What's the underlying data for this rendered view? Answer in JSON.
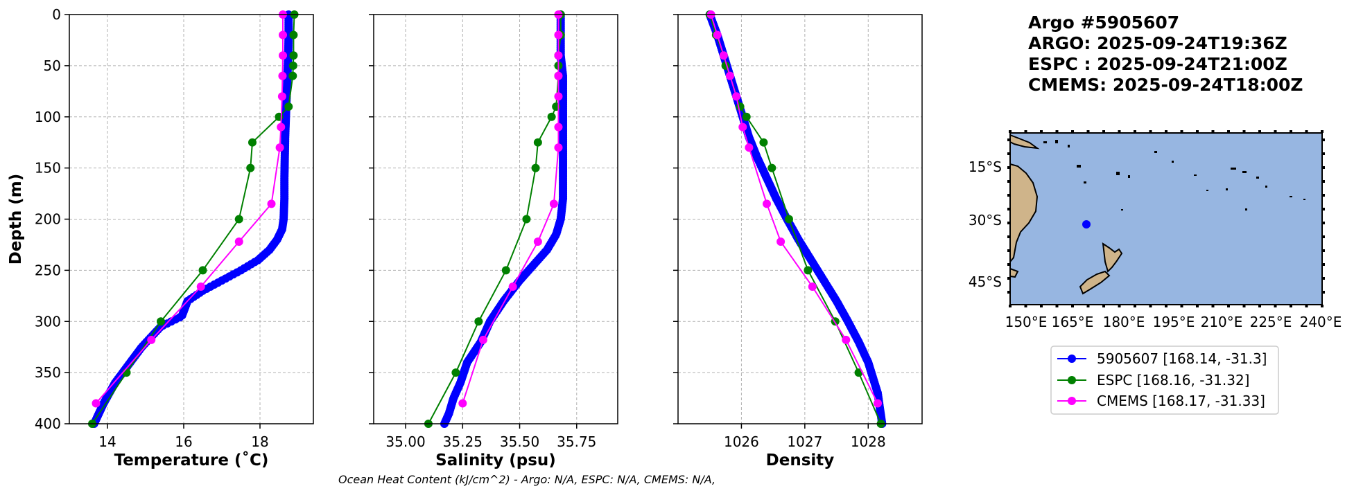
{
  "title_lines": [
    "Argo #5905607",
    "ARGO: 2025-09-24T19:36Z",
    "ESPC : 2025-09-24T21:00Z",
    "CMEMS: 2025-09-24T18:00Z"
  ],
  "footer": "Ocean Heat Content (kJ/cm^2) - Argo: N/A,  ESPC: N/A,  CMEMS: N/A,",
  "colors": {
    "argo": "#0000ff",
    "espc": "#008000",
    "cmems": "#ff00ff",
    "ocean": "#97b6e1",
    "land": "#cfb48a"
  },
  "legend": [
    {
      "label": "5905607 [168.14, -31.3]",
      "color": "#0000ff"
    },
    {
      "label": "ESPC [168.16, -31.32]",
      "color": "#008000"
    },
    {
      "label": "CMEMS [168.17, -31.33]",
      "color": "#ff00ff"
    }
  ],
  "map": {
    "lat_ticks": [
      "15°S",
      "30°S",
      "45°S"
    ],
    "lon_ticks": [
      "150°E",
      "165°E",
      "180°E",
      "195°E",
      "210°E",
      "225°E",
      "240°E"
    ],
    "float_position": {
      "lon": 168.14,
      "lat": -31.3
    }
  },
  "chart_data": [
    {
      "type": "line",
      "xlabel": "Temperature (˚C)",
      "ylabel": "Depth (m)",
      "xlim": [
        13.0,
        19.4
      ],
      "ylim": [
        400,
        0
      ],
      "xticks": [
        14,
        16,
        18
      ],
      "xtick_labels": [
        "14",
        "16",
        "18"
      ],
      "yticks": [
        0,
        50,
        100,
        150,
        200,
        250,
        300,
        350,
        400
      ],
      "ytick_labels": [
        "0",
        "50",
        "100",
        "150",
        "200",
        "250",
        "300",
        "350",
        "400"
      ],
      "grid": true,
      "series": [
        {
          "name": "5905607 [168.14, -31.3]",
          "key": "argo",
          "dense": true,
          "x": [
            18.75,
            18.75,
            18.74,
            18.72,
            18.7,
            18.68,
            18.66,
            18.65,
            18.64,
            18.64,
            18.63,
            18.62,
            18.58,
            18.45,
            18.25,
            17.95,
            17.5,
            17.0,
            16.5,
            16.1,
            15.95,
            15.4,
            14.9,
            14.5,
            14.2,
            13.9,
            13.65
          ],
          "y": [
            0,
            20,
            40,
            60,
            80,
            100,
            120,
            140,
            160,
            180,
            190,
            200,
            210,
            220,
            230,
            240,
            250,
            260,
            270,
            280,
            295,
            305,
            325,
            345,
            360,
            380,
            400
          ]
        },
        {
          "name": "ESPC [168.16, -31.32]",
          "key": "espc",
          "x": [
            18.9,
            18.88,
            18.88,
            18.87,
            18.86,
            18.75,
            18.5,
            17.8,
            17.75,
            17.45,
            16.5,
            15.4,
            14.5,
            13.6
          ],
          "y": [
            0,
            20,
            40,
            50,
            60,
            90,
            100,
            125,
            150,
            200,
            250,
            300,
            350,
            400
          ]
        },
        {
          "name": "CMEMS [168.17, -31.33]",
          "key": "cmems",
          "x": [
            18.6,
            18.6,
            18.6,
            18.59,
            18.58,
            18.55,
            18.52,
            18.3,
            17.45,
            16.45,
            15.15,
            13.7
          ],
          "y": [
            0,
            20,
            40,
            60,
            80,
            110,
            130,
            185,
            222,
            266,
            318,
            380
          ]
        }
      ]
    },
    {
      "type": "line",
      "xlabel": "Salinity (psu)",
      "ylabel": "",
      "xlim": [
        34.86,
        35.93
      ],
      "ylim": [
        400,
        0
      ],
      "xticks": [
        35.0,
        35.25,
        35.5,
        35.75
      ],
      "xtick_labels": [
        "35.00",
        "35.25",
        "35.50",
        "35.75"
      ],
      "yticks": [
        0,
        50,
        100,
        150,
        200,
        250,
        300,
        350,
        400
      ],
      "grid": true,
      "series": [
        {
          "name": "5905607 [168.14, -31.3]",
          "key": "argo",
          "dense": true,
          "x": [
            35.68,
            35.68,
            35.68,
            35.69,
            35.69,
            35.69,
            35.69,
            35.69,
            35.69,
            35.69,
            35.68,
            35.66,
            35.62,
            35.56,
            35.5,
            35.43,
            35.37,
            35.33,
            35.27,
            35.24,
            35.21,
            35.19,
            35.17
          ],
          "y": [
            0,
            20,
            40,
            60,
            80,
            100,
            120,
            140,
            160,
            180,
            200,
            215,
            230,
            245,
            260,
            280,
            300,
            320,
            340,
            360,
            375,
            390,
            400
          ]
        },
        {
          "name": "ESPC [168.16, -31.32]",
          "key": "espc",
          "x": [
            35.68,
            35.68,
            35.67,
            35.67,
            35.67,
            35.66,
            35.64,
            35.58,
            35.57,
            35.53,
            35.44,
            35.32,
            35.22,
            35.1
          ],
          "y": [
            0,
            20,
            40,
            50,
            60,
            90,
            100,
            125,
            150,
            200,
            250,
            300,
            350,
            400
          ]
        },
        {
          "name": "CMEMS [168.17, -31.33]",
          "key": "cmems",
          "x": [
            35.67,
            35.67,
            35.67,
            35.67,
            35.67,
            35.67,
            35.67,
            35.65,
            35.58,
            35.47,
            35.34,
            35.25
          ],
          "y": [
            0,
            20,
            40,
            60,
            80,
            110,
            130,
            185,
            222,
            266,
            318,
            380
          ]
        }
      ]
    },
    {
      "type": "line",
      "xlabel": "Density",
      "ylabel": "",
      "xlim": [
        1025.0,
        1028.85
      ],
      "ylim": [
        400,
        0
      ],
      "xticks": [
        1026,
        1027,
        1028
      ],
      "xtick_labels": [
        "1026",
        "1027",
        "1028"
      ],
      "yticks": [
        0,
        50,
        100,
        150,
        200,
        250,
        300,
        350,
        400
      ],
      "grid": true,
      "series": [
        {
          "name": "5905607 [168.14, -31.3]",
          "key": "argo",
          "dense": true,
          "x": [
            1025.5,
            1025.62,
            1025.72,
            1025.82,
            1025.92,
            1026.02,
            1026.12,
            1026.25,
            1026.4,
            1026.55,
            1026.72,
            1026.9,
            1027.1,
            1027.3,
            1027.5,
            1027.68,
            1027.85,
            1028.0,
            1028.15,
            1028.22
          ],
          "y": [
            0,
            20,
            40,
            60,
            80,
            100,
            120,
            140,
            160,
            180,
            200,
            220,
            240,
            260,
            280,
            300,
            320,
            340,
            370,
            400
          ]
        },
        {
          "name": "ESPC [168.16, -31.32]",
          "key": "espc",
          "x": [
            1025.5,
            1025.6,
            1025.72,
            1025.75,
            1025.82,
            1025.98,
            1026.08,
            1026.35,
            1026.48,
            1026.75,
            1027.05,
            1027.48,
            1027.85,
            1028.2
          ],
          "y": [
            0,
            20,
            40,
            50,
            60,
            90,
            100,
            125,
            150,
            200,
            250,
            300,
            350,
            400
          ]
        },
        {
          "name": "CMEMS [168.17, -31.33]",
          "key": "cmems",
          "x": [
            1025.52,
            1025.62,
            1025.72,
            1025.82,
            1025.92,
            1026.02,
            1026.12,
            1026.4,
            1026.62,
            1027.12,
            1027.65,
            1028.15
          ],
          "y": [
            0,
            20,
            40,
            60,
            80,
            110,
            130,
            185,
            222,
            266,
            318,
            380
          ]
        }
      ]
    }
  ]
}
